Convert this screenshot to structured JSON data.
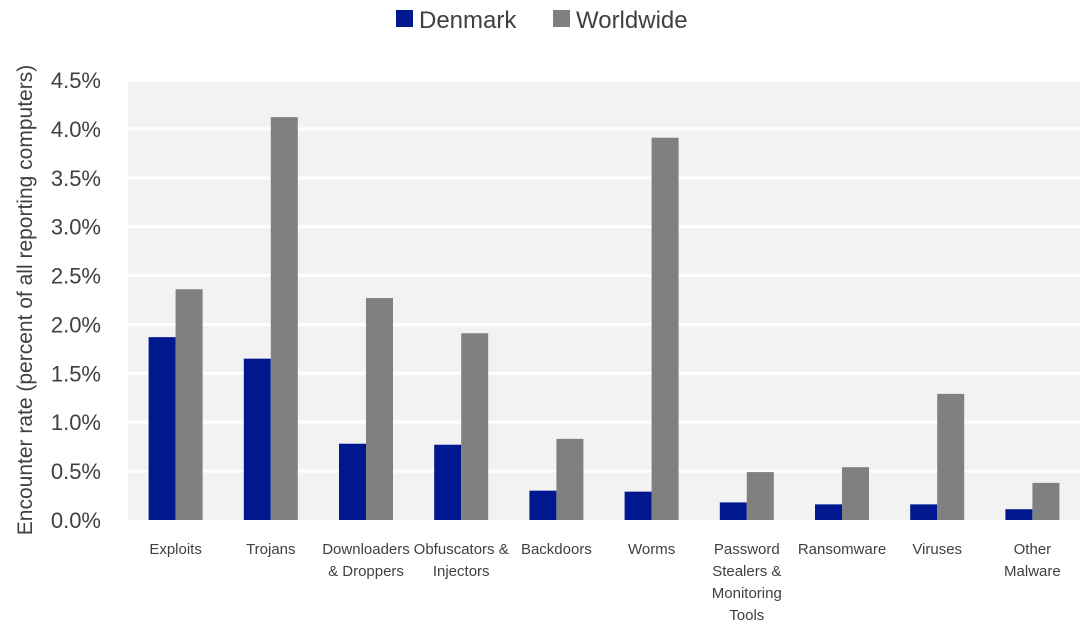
{
  "chart_data": {
    "type": "bar",
    "title": "",
    "xlabel": "",
    "ylabel": "Encounter rate (percent of all reporting computers)",
    "ylim": [
      0,
      4.5
    ],
    "y_ticks": [
      "0.0%",
      "0.5%",
      "1.0%",
      "1.5%",
      "2.0%",
      "2.5%",
      "3.0%",
      "3.5%",
      "4.0%",
      "4.5%"
    ],
    "grid": true,
    "legend_position": "top",
    "categories": [
      [
        "Exploits"
      ],
      [
        "Trojans"
      ],
      [
        "Downloaders",
        "& Droppers"
      ],
      [
        "Obfuscators &",
        "Injectors"
      ],
      [
        "Backdoors"
      ],
      [
        "Worms"
      ],
      [
        "Password",
        "Stealers &",
        "Monitoring",
        "Tools"
      ],
      [
        "Ransomware"
      ],
      [
        "Viruses"
      ],
      [
        "Other",
        "Malware"
      ]
    ],
    "series": [
      {
        "name": "Denmark",
        "color": "#00188f",
        "values": [
          1.87,
          1.65,
          0.78,
          0.77,
          0.3,
          0.29,
          0.18,
          0.16,
          0.16,
          0.11
        ]
      },
      {
        "name": "Worldwide",
        "color": "#808080",
        "values": [
          2.36,
          4.12,
          2.27,
          1.91,
          0.83,
          3.91,
          0.49,
          0.54,
          1.29,
          0.38
        ]
      }
    ]
  }
}
